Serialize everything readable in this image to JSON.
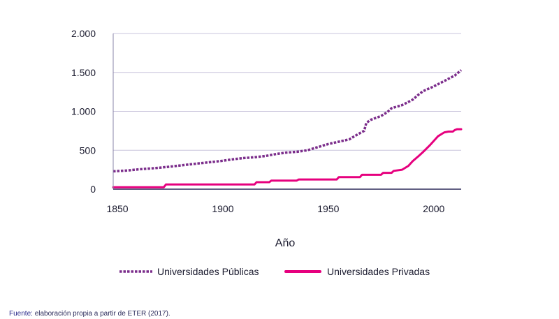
{
  "chart_data": {
    "type": "line",
    "title": "",
    "xlabel": "Año",
    "ylabel": "",
    "xlim": [
      1848,
      2013
    ],
    "ylim": [
      0,
      2000
    ],
    "xticks": [
      1850,
      1900,
      1950,
      2000
    ],
    "xtick_labels": [
      "1850",
      "1900",
      "1950",
      "2000"
    ],
    "yticks": [
      0,
      500,
      1000,
      1500,
      2000
    ],
    "ytick_labels": [
      "0",
      "500",
      "1.000",
      "1.500",
      "2.000"
    ],
    "grid": "horizontal",
    "legend_position": "bottom",
    "series": [
      {
        "name": "Universidades Públicas",
        "color": "#7b2d8b",
        "line_style": "dotted",
        "x": [
          1848,
          1855,
          1860,
          1865,
          1870,
          1875,
          1880,
          1885,
          1890,
          1895,
          1900,
          1905,
          1910,
          1915,
          1920,
          1925,
          1930,
          1935,
          1940,
          1945,
          1950,
          1955,
          1960,
          1963,
          1965,
          1967,
          1968,
          1970,
          1975,
          1978,
          1980,
          1985,
          1990,
          1993,
          1995,
          2000,
          2005,
          2010,
          2013
        ],
        "values": [
          230,
          240,
          255,
          265,
          275,
          290,
          305,
          320,
          335,
          350,
          365,
          385,
          400,
          410,
          425,
          450,
          470,
          480,
          500,
          540,
          580,
          610,
          640,
          690,
          720,
          750,
          850,
          890,
          940,
          990,
          1040,
          1080,
          1150,
          1220,
          1260,
          1320,
          1390,
          1460,
          1530
        ]
      },
      {
        "name": "Universidades Privadas",
        "color": "#e6007e",
        "line_style": "solid",
        "x": [
          1848,
          1870,
          1872,
          1873,
          1915,
          1916,
          1922,
          1923,
          1935,
          1936,
          1954,
          1955,
          1965,
          1966,
          1975,
          1976,
          1980,
          1981,
          1985,
          1988,
          1990,
          1993,
          1995,
          1998,
          2000,
          2002,
          2005,
          2007,
          2009,
          2010,
          2011,
          2013
        ],
        "values": [
          25,
          25,
          25,
          60,
          60,
          90,
          90,
          110,
          110,
          125,
          125,
          155,
          155,
          185,
          185,
          210,
          210,
          235,
          250,
          300,
          360,
          430,
          480,
          560,
          620,
          680,
          730,
          740,
          740,
          760,
          770,
          770
        ]
      }
    ]
  },
  "footer": {
    "label": "Fuente:",
    "text": " elaboración propia a partir de ETER (2017)."
  }
}
